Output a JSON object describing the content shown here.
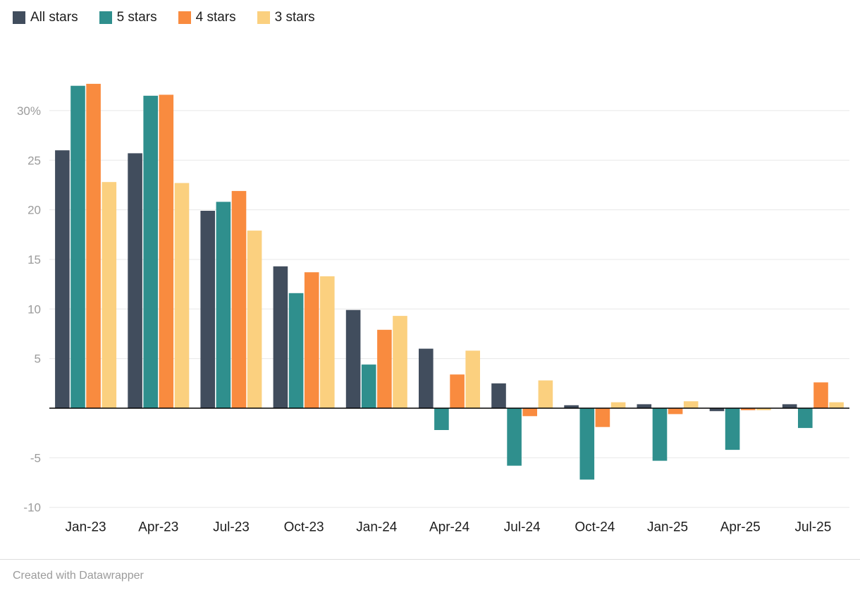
{
  "chart_data": {
    "type": "bar",
    "title": "",
    "xlabel": "",
    "ylabel": "",
    "categories": [
      "Jan-23",
      "Apr-23",
      "Jul-23",
      "Oct-23",
      "Jan-24",
      "Apr-24",
      "Jul-24",
      "Oct-24",
      "Jan-25",
      "Apr-25",
      "Jul-25"
    ],
    "series": [
      {
        "name": "All stars",
        "color": "#414d5d",
        "values": [
          26.0,
          25.7,
          19.9,
          14.3,
          9.9,
          6.0,
          2.5,
          0.3,
          0.4,
          -0.3,
          0.4
        ]
      },
      {
        "name": "5 stars",
        "color": "#2f8f8d",
        "values": [
          32.5,
          31.5,
          20.8,
          11.6,
          4.4,
          -2.2,
          -5.8,
          -7.2,
          -5.3,
          -4.2,
          -2.0
        ]
      },
      {
        "name": "4 stars",
        "color": "#f98b3f",
        "values": [
          32.7,
          31.6,
          21.9,
          13.7,
          7.9,
          3.4,
          -0.8,
          -1.9,
          -0.6,
          -0.2,
          2.6
        ]
      },
      {
        "name": "3 stars",
        "color": "#fbd07f",
        "values": [
          22.8,
          22.7,
          17.9,
          13.3,
          9.3,
          5.8,
          2.8,
          0.6,
          0.7,
          -0.2,
          0.6
        ]
      }
    ],
    "ylim": [
      -10,
      33
    ],
    "yticks": [
      -10,
      -5,
      5,
      10,
      15,
      20,
      25,
      30
    ],
    "ytick_labels": [
      "-10",
      "-5",
      "5",
      "10",
      "15",
      "20",
      "25",
      "30%"
    ],
    "grid": true,
    "zero_line": true,
    "legend_position": "top-left"
  },
  "footer": {
    "credit": "Created with Datawrapper"
  },
  "colors": {
    "background": "#ffffff",
    "grid": "#e8e8e8",
    "zero_line": "#000000",
    "y_tick_label": "#9b9b9b",
    "x_tick_label": "#1d1d1d"
  }
}
